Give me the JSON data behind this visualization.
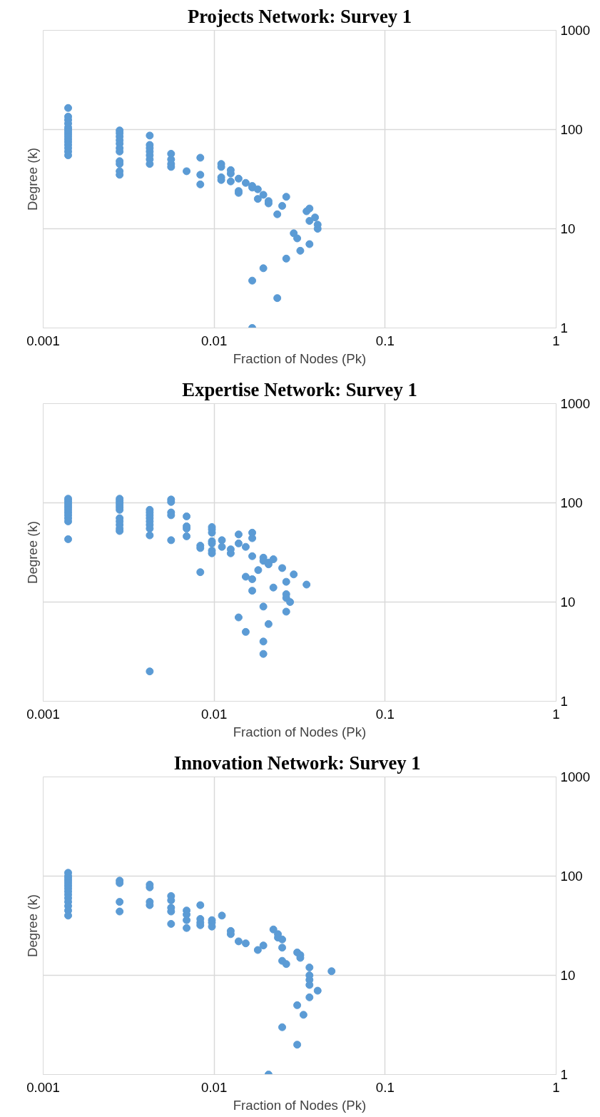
{
  "chart_data": [
    {
      "type": "scatter",
      "title": "Projects Network: Survey 1",
      "xlabel": "Fraction of Nodes (Pk)",
      "ylabel": "Degree (k)",
      "log": "xy",
      "grid": true,
      "marker": "circle",
      "xlim": [
        0.001,
        1
      ],
      "ylim": [
        1,
        1000
      ],
      "xticks": [
        0.001,
        0.01,
        0.1,
        1
      ],
      "yticks": [
        1,
        10,
        100,
        1000
      ],
      "series": [
        {
          "color": "#5b9bd5",
          "x": [
            0.0014,
            0.0014,
            0.0014,
            0.0014,
            0.0014,
            0.0014,
            0.0014,
            0.0014,
            0.0014,
            0.0014,
            0.0014,
            0.0014,
            0.0014,
            0.0014,
            0.0014,
            0.0028,
            0.0028,
            0.0028,
            0.0028,
            0.0028,
            0.0028,
            0.0028,
            0.0028,
            0.0028,
            0.0028,
            0.0028,
            0.0042,
            0.0042,
            0.0042,
            0.0042,
            0.0042,
            0.0042,
            0.0042,
            0.0056,
            0.0056,
            0.0056,
            0.0056,
            0.0069,
            0.0083,
            0.0083,
            0.0083,
            0.011,
            0.011,
            0.011,
            0.011,
            0.0125,
            0.0125,
            0.0125,
            0.0139,
            0.0139,
            0.0139,
            0.0153,
            0.0167,
            0.0167,
            0.018,
            0.018,
            0.0194,
            0.0208,
            0.0208,
            0.0234,
            0.025,
            0.0264,
            0.0347,
            0.0361,
            0.0361,
            0.0389,
            0.0403,
            0.0403,
            0.0292,
            0.0306,
            0.0319,
            0.0361,
            0.0264,
            0.0194,
            0.0167,
            0.0234,
            0.0167
          ],
          "values": [
            165,
            135,
            125,
            115,
            105,
            100,
            95,
            90,
            85,
            80,
            75,
            70,
            65,
            60,
            55,
            98,
            92,
            85,
            78,
            72,
            65,
            60,
            48,
            45,
            38,
            35,
            87,
            70,
            65,
            60,
            55,
            50,
            45,
            57,
            50,
            45,
            42,
            38,
            52,
            35,
            28,
            45,
            42,
            33,
            31,
            39,
            36,
            30,
            32,
            24,
            23,
            29,
            27,
            26,
            25,
            20,
            22,
            19,
            18,
            14,
            17,
            21,
            15,
            16,
            12,
            13,
            11,
            10,
            9,
            8,
            6,
            7,
            5,
            4,
            3,
            2,
            1
          ]
        }
      ]
    },
    {
      "type": "scatter",
      "title": "Expertise Network: Survey 1",
      "xlabel": "Fraction of Nodes (Pk)",
      "ylabel": "Degree (k)",
      "log": "xy",
      "grid": true,
      "marker": "circle",
      "xlim": [
        0.001,
        1
      ],
      "ylim": [
        1,
        1000
      ],
      "xticks": [
        0.001,
        0.01,
        0.1,
        1
      ],
      "yticks": [
        1,
        10,
        100,
        1000
      ],
      "series": [
        {
          "color": "#5b9bd5",
          "x": [
            0.0014,
            0.0014,
            0.0014,
            0.0014,
            0.0014,
            0.0014,
            0.0014,
            0.0014,
            0.0014,
            0.0014,
            0.0014,
            0.0028,
            0.0028,
            0.0028,
            0.0028,
            0.0028,
            0.0028,
            0.0028,
            0.0028,
            0.0028,
            0.0028,
            0.0028,
            0.0042,
            0.0042,
            0.0042,
            0.0042,
            0.0042,
            0.0042,
            0.0042,
            0.0042,
            0.0056,
            0.0056,
            0.0056,
            0.0056,
            0.0056,
            0.0069,
            0.0069,
            0.0069,
            0.0069,
            0.0083,
            0.0083,
            0.0083,
            0.0097,
            0.0097,
            0.0097,
            0.0097,
            0.0097,
            0.0097,
            0.0097,
            0.0111,
            0.0111,
            0.0125,
            0.0125,
            0.0139,
            0.0139,
            0.0139,
            0.0153,
            0.0153,
            0.0153,
            0.0167,
            0.0167,
            0.0167,
            0.0167,
            0.0167,
            0.0181,
            0.0194,
            0.0194,
            0.0194,
            0.0194,
            0.0194,
            0.0208,
            0.0208,
            0.0208,
            0.0222,
            0.0222,
            0.025,
            0.0264,
            0.0264,
            0.0264,
            0.0264,
            0.0278,
            0.0292,
            0.0347,
            0.0042
          ],
          "values": [
            110,
            105,
            100,
            95,
            90,
            85,
            80,
            75,
            70,
            65,
            43,
            110,
            105,
            100,
            95,
            90,
            85,
            70,
            65,
            60,
            55,
            52,
            85,
            80,
            75,
            70,
            65,
            60,
            55,
            47,
            108,
            102,
            80,
            75,
            42,
            73,
            58,
            55,
            46,
            37,
            35,
            20,
            57,
            54,
            50,
            41,
            39,
            33,
            31,
            42,
            36,
            34,
            31,
            48,
            39,
            7,
            36,
            18,
            5,
            50,
            44,
            29,
            17,
            13,
            21,
            28,
            26,
            9,
            4,
            3,
            24,
            25,
            6,
            27,
            14,
            22,
            16,
            12,
            11,
            8,
            10,
            19,
            15,
            2
          ]
        }
      ]
    },
    {
      "type": "scatter",
      "title": "Innovation  Network: Survey 1",
      "xlabel": "Fraction of Nodes (Pk)",
      "ylabel": "Degree (k)",
      "log": "xy",
      "grid": true,
      "marker": "circle",
      "xlim": [
        0.001,
        1
      ],
      "ylim": [
        1,
        1000
      ],
      "xticks": [
        0.001,
        0.01,
        0.1,
        1
      ],
      "yticks": [
        1,
        10,
        100,
        1000
      ],
      "series": [
        {
          "color": "#5b9bd5",
          "x": [
            0.0014,
            0.0014,
            0.0014,
            0.0014,
            0.0014,
            0.0014,
            0.0014,
            0.0014,
            0.0014,
            0.0014,
            0.0014,
            0.0014,
            0.0014,
            0.0014,
            0.0028,
            0.0028,
            0.0028,
            0.0028,
            0.0042,
            0.0042,
            0.0042,
            0.0042,
            0.0056,
            0.0056,
            0.0056,
            0.0056,
            0.0056,
            0.0069,
            0.0069,
            0.0069,
            0.0069,
            0.0083,
            0.0083,
            0.0083,
            0.0083,
            0.0097,
            0.0097,
            0.0097,
            0.0111,
            0.0125,
            0.0125,
            0.0139,
            0.0153,
            0.018,
            0.0194,
            0.0222,
            0.0236,
            0.0236,
            0.025,
            0.025,
            0.025,
            0.0264,
            0.0306,
            0.0319,
            0.0319,
            0.0361,
            0.0361,
            0.0361,
            0.0361,
            0.0361,
            0.0403,
            0.0486,
            0.0306,
            0.0333,
            0.025,
            0.0306,
            0.0208
          ],
          "values": [
            108,
            100,
            95,
            90,
            85,
            80,
            75,
            70,
            65,
            60,
            55,
            50,
            45,
            40,
            90,
            85,
            55,
            44,
            82,
            77,
            55,
            51,
            63,
            57,
            48,
            44,
            33,
            45,
            41,
            36,
            30,
            51,
            37,
            34,
            32,
            36,
            34,
            31,
            40,
            28,
            26,
            22,
            21,
            18,
            20,
            29,
            26,
            24,
            23,
            19,
            14,
            13,
            17,
            16,
            15,
            12,
            10,
            9,
            8,
            6,
            7,
            11,
            5,
            4,
            3,
            2,
            1
          ]
        }
      ]
    }
  ]
}
